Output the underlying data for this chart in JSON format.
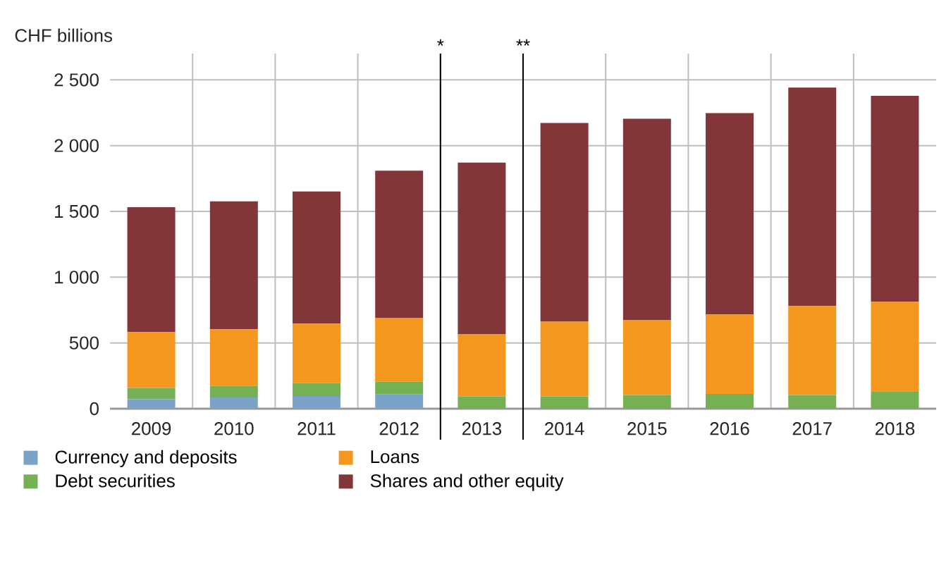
{
  "chart_data": {
    "type": "bar",
    "stacked": true,
    "ylabel": "CHF billions",
    "categories": [
      "2009",
      "2010",
      "2011",
      "2012",
      "2013",
      "2014",
      "2015",
      "2016",
      "2017",
      "2018"
    ],
    "series": [
      {
        "name": "Currency and deposits",
        "color": "#7ba3c8",
        "values": [
          72,
          86,
          97,
          108,
          0,
          0,
          0,
          0,
          0,
          0
        ]
      },
      {
        "name": "Debt securities",
        "color": "#76b054",
        "values": [
          86,
          87,
          97,
          97,
          94,
          94,
          104,
          112,
          104,
          133
        ]
      },
      {
        "name": "Loans",
        "color": "#f3971f",
        "values": [
          425,
          431,
          453,
          486,
          471,
          568,
          569,
          604,
          677,
          680
        ]
      },
      {
        "name": "Shares and other equity",
        "color": "#823639",
        "values": [
          949,
          972,
          1004,
          1119,
          1306,
          1511,
          1532,
          1532,
          1661,
          1565
        ]
      }
    ],
    "ylim": [
      0,
      2700
    ],
    "yticks": [
      0,
      500,
      {
        "value": 1000,
        "label": "1 000"
      },
      {
        "value": 1500,
        "label": "1 500"
      },
      {
        "value": 2000,
        "label": "2 000"
      },
      {
        "value": 2500,
        "label": "2 500"
      }
    ],
    "annotations": [
      "*",
      "**"
    ],
    "grid": true,
    "legend": "bottom"
  }
}
